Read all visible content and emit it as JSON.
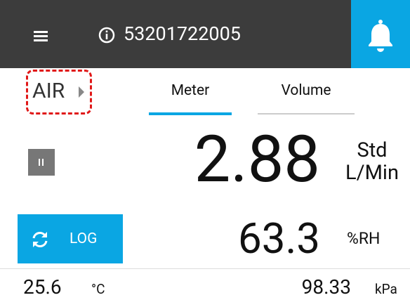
{
  "header": {
    "device_id": "53201722005"
  },
  "gas": "AIR",
  "tabs": [
    "Meter",
    "Volume"
  ],
  "flow": {
    "value": "2.88",
    "unit_top": "Std",
    "unit_bottom": "L/Min"
  },
  "log_button": "LOG",
  "humidity": {
    "value": "63.3",
    "unit": "%RH"
  },
  "temperature": {
    "value": "25.6",
    "unit": "°C"
  },
  "pressure": {
    "value": "98.33",
    "unit": "kPa"
  }
}
